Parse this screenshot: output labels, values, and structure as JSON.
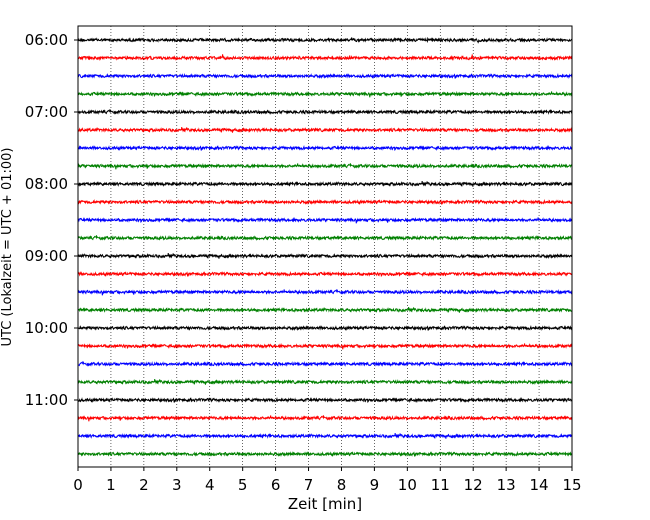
{
  "chart_data": {
    "type": "line",
    "title": "",
    "xlabel": "Zeit  [min]",
    "ylabel": "UTC (Lokalzeit = UTC + 01:00)",
    "xlim": [
      0,
      15
    ],
    "x_ticks": [
      "0",
      "1",
      "2",
      "3",
      "4",
      "5",
      "6",
      "7",
      "8",
      "9",
      "10",
      "11",
      "12",
      "13",
      "14",
      "15"
    ],
    "y_ticks": [
      "06:00",
      "07:00",
      "08:00",
      "09:00",
      "10:00",
      "11:00"
    ],
    "grid": "vertical dotted lines at each minute",
    "trace_interval_min": 15,
    "trace_colors": [
      "#000000",
      "#ff0000",
      "#0000ff",
      "#008000"
    ],
    "series": [
      {
        "start": "06:00",
        "color": "#000000"
      },
      {
        "start": "06:15",
        "color": "#ff0000"
      },
      {
        "start": "06:30",
        "color": "#0000ff"
      },
      {
        "start": "06:45",
        "color": "#008000"
      },
      {
        "start": "07:00",
        "color": "#000000"
      },
      {
        "start": "07:15",
        "color": "#ff0000"
      },
      {
        "start": "07:30",
        "color": "#0000ff"
      },
      {
        "start": "07:45",
        "color": "#008000"
      },
      {
        "start": "08:00",
        "color": "#000000"
      },
      {
        "start": "08:15",
        "color": "#ff0000"
      },
      {
        "start": "08:30",
        "color": "#0000ff"
      },
      {
        "start": "08:45",
        "color": "#008000"
      },
      {
        "start": "09:00",
        "color": "#000000"
      },
      {
        "start": "09:15",
        "color": "#ff0000"
      },
      {
        "start": "09:30",
        "color": "#0000ff"
      },
      {
        "start": "09:45",
        "color": "#008000"
      },
      {
        "start": "10:00",
        "color": "#000000"
      },
      {
        "start": "10:15",
        "color": "#ff0000"
      },
      {
        "start": "10:30",
        "color": "#0000ff"
      },
      {
        "start": "10:45",
        "color": "#008000"
      },
      {
        "start": "11:00",
        "color": "#000000"
      },
      {
        "start": "11:15",
        "color": "#ff0000"
      },
      {
        "start": "11:30",
        "color": "#0000ff"
      },
      {
        "start": "11:45",
        "color": "#008000"
      }
    ]
  }
}
